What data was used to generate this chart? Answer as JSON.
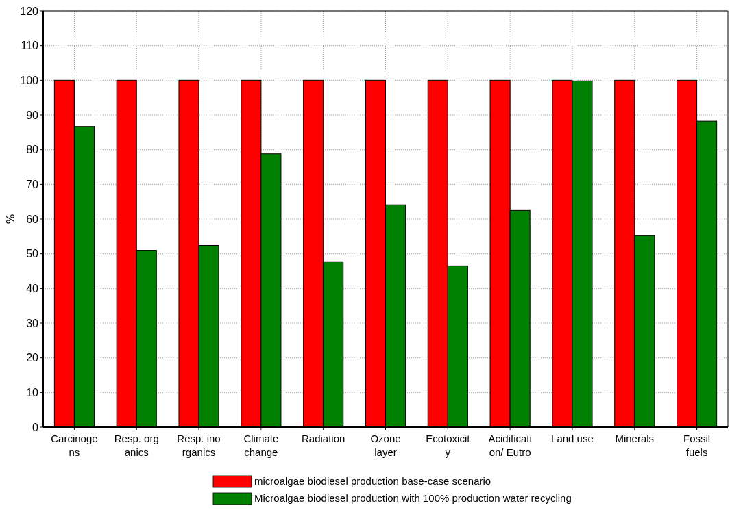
{
  "chart_data": {
    "type": "bar",
    "ylabel": "%",
    "categories": [
      "Carcinoge\nns",
      "Resp. org\nanics",
      "Resp. ino\nrganics",
      "Climate\nchange",
      "Radiation",
      "Ozone\nlayer",
      "Ecotoxicit\ny",
      "Acidificati\non/ Eutro",
      "Land use",
      "Minerals",
      "Fossil\nfuels"
    ],
    "series": [
      {
        "name": "microalgae biodiesel production base-case scenario",
        "color": "#ff0000",
        "values": [
          100,
          100,
          100,
          100,
          100,
          100,
          100,
          100,
          100,
          100,
          100
        ]
      },
      {
        "name": "Microalgae biodiesel production with 100%  production water recycling",
        "color": "#008000",
        "values": [
          86.7,
          51.0,
          52.4,
          78.8,
          47.7,
          64.1,
          46.5,
          62.5,
          99.8,
          55.2,
          88.2
        ]
      }
    ],
    "ylim": [
      0,
      120
    ],
    "yticks": [
      0,
      10,
      20,
      30,
      40,
      50,
      60,
      70,
      80,
      90,
      100,
      110,
      120
    ],
    "grid": true,
    "legend": "bottom"
  }
}
